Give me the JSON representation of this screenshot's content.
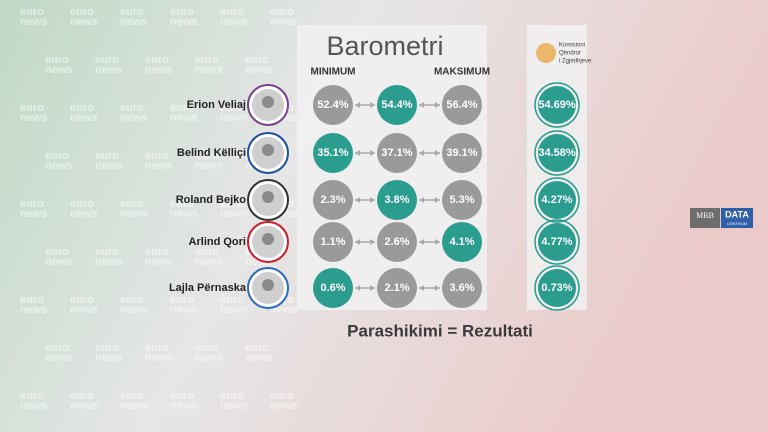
{
  "header": {
    "title": "Barometri",
    "col_min": "MINIMUM",
    "col_max": "MAKSIMUM",
    "logo": [
      "Komisioni",
      "Qëndror",
      "i Zgjedhjeve"
    ]
  },
  "rows": [
    {
      "name": "Erion Veliaj",
      "ring": "#7b3f8c",
      "values": [
        "52.4%",
        "54.4%",
        "56.4%"
      ],
      "highlight": 1,
      "result": "54.69%"
    },
    {
      "name": "Belind Këlliçi",
      "ring": "#1f4fa0",
      "values": [
        "35.1%",
        "37.1%",
        "39.1%"
      ],
      "highlight": 0,
      "result": "34.58%"
    },
    {
      "name": "Roland Bejko",
      "ring": "#333333",
      "values": [
        "2.3%",
        "3.8%",
        "5.3%"
      ],
      "highlight": 1,
      "result": "4.27%"
    },
    {
      "name": "Arlind Qori",
      "ring": "#c8202a",
      "values": [
        "1.1%",
        "2.6%",
        "4.1%"
      ],
      "highlight": 2,
      "result": "4.77%"
    },
    {
      "name": "Lajla Përnaska",
      "ring": "#2a6cc0",
      "values": [
        "0.6%",
        "2.1%",
        "3.6%"
      ],
      "highlight": 0,
      "result": "0.73%"
    }
  ],
  "footer": "Parashikimi = Rezultati",
  "watermark": [
    "euro",
    "news"
  ],
  "badges": [
    "MRB",
    "DATA",
    "CENTRUM"
  ]
}
